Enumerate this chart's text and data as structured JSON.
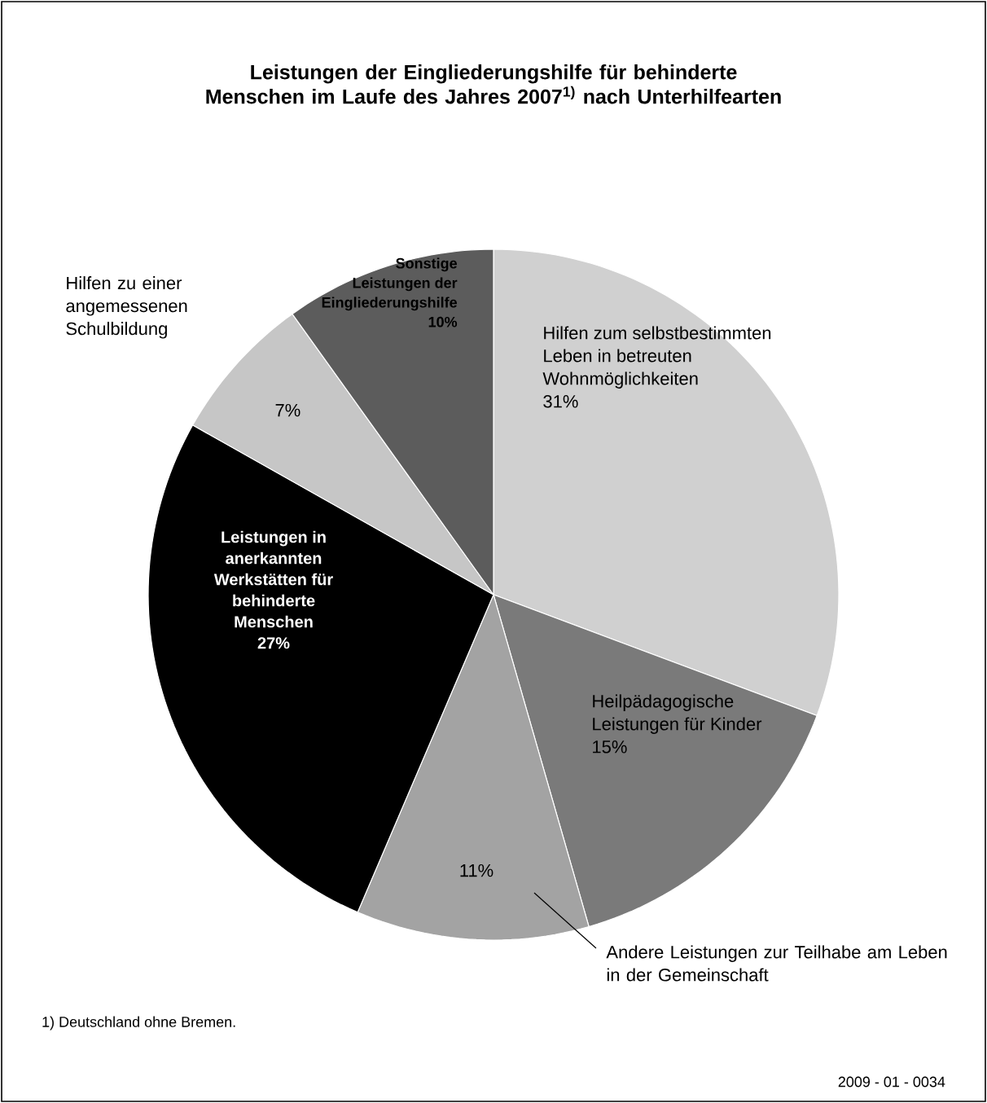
{
  "chart_data": {
    "type": "pie",
    "title": "Leistungen der Eingliederungshilfe für behinderte Menschen im Laufe des Jahres 2007$^{1)}$ nach Unterhilfearten",
    "categories": [
      "Hilfen zum selbstbestimmten Leben in betreuten Wohnmöglichkeiten",
      "Heilpädagogische Leistungen für Kinder",
      "Andere Leistungen zur Teilhabe am Leben in der Gemeinschaft",
      "Leistungen in anerkannten Werkstätten für behinderte Menschen",
      "Hilfen zu einer angemessenen Schulbildung",
      "Sonstige Leistungen der Eingliederungshilfe"
    ],
    "values": [
      31,
      15,
      11,
      27,
      7,
      10
    ],
    "value_labels": [
      "31%",
      "15%",
      "11%",
      "27%",
      "7%",
      "10%"
    ],
    "colors": [
      "#d0d0d0",
      "#7a7a7a",
      "#a3a3a3",
      "#000000",
      "#c6c6c6",
      "#5c5c5c"
    ],
    "annotations": [
      "1) Deutschland ohne Bremen.",
      "2009 - 01 - 0034"
    ]
  }
}
